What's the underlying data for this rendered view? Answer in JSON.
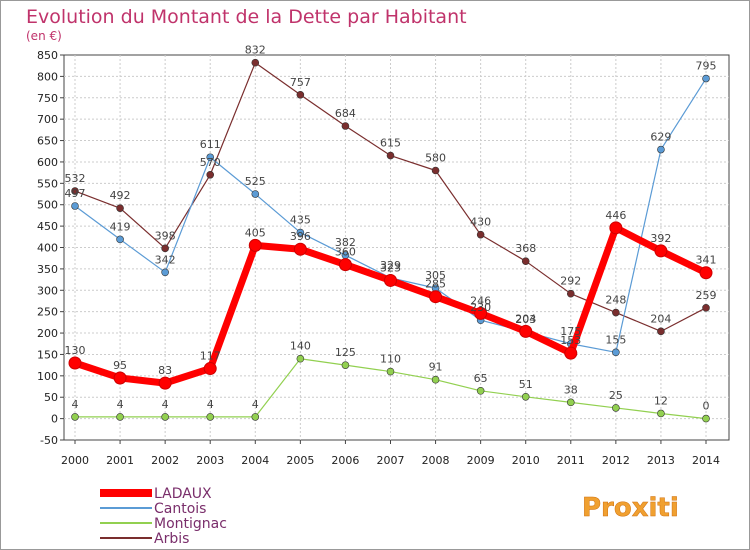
{
  "chart_data": {
    "type": "line",
    "title": "Evolution du Montant de la Dette par Habitant",
    "subtitle": "(en €)",
    "x": [
      "2000",
      "2001",
      "2002",
      "2003",
      "2004",
      "2005",
      "2006",
      "2007",
      "2008",
      "2009",
      "2010",
      "2011",
      "2012",
      "2013",
      "2014"
    ],
    "ylim": [
      -50,
      850
    ],
    "yticks": [
      -50,
      0,
      50,
      100,
      150,
      200,
      250,
      300,
      350,
      400,
      450,
      500,
      550,
      600,
      650,
      700,
      750,
      800,
      850
    ],
    "grid": true,
    "legend_position": "bottom-left",
    "series": [
      {
        "name": "LADAUX",
        "color": "#ff0000",
        "values": [
          130,
          95,
          83,
          117,
          405,
          396,
          360,
          323,
          285,
          246,
          204,
          153,
          446,
          392,
          341
        ]
      },
      {
        "name": "Cantois",
        "color": "#5b9bd5",
        "values": [
          497,
          419,
          342,
          611,
          525,
          435,
          382,
          329,
          305,
          230,
          203,
          175,
          155,
          629,
          795
        ]
      },
      {
        "name": "Montignac",
        "color": "#92d050",
        "values": [
          4,
          4,
          4,
          4,
          4,
          140,
          125,
          110,
          91,
          65,
          51,
          38,
          25,
          12,
          0
        ]
      },
      {
        "name": "Arbis",
        "color": "#7a2e2e",
        "values": [
          532,
          492,
          398,
          570,
          832,
          757,
          684,
          615,
          580,
          430,
          368,
          292,
          248,
          204,
          259
        ]
      }
    ]
  },
  "logo": {
    "text": "Proxiti"
  }
}
